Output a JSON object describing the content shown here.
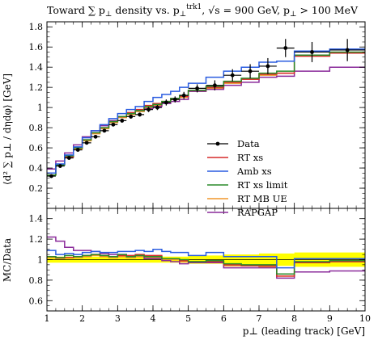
{
  "chart_data": {
    "type": "line",
    "title": "Toward ∑ p⊥ density vs. p⊥trk1, √s = 900 GeV, p⊥ > 100 MeV",
    "title_parts": {
      "main": "Toward ∑ p",
      "sub1": "⊥",
      "mid": " density vs. p",
      "sub2": "⊥",
      "sup2": "trk1",
      "tail": ", √s = 900 GeV, p",
      "sub3": "⊥",
      "end": " > 100 MeV"
    },
    "xlabel": "p⊥ (leading track) [GeV]",
    "ylabel": "⟨d² ∑ p⊥ / dηdφ⟩ [GeV]",
    "ratio_ylabel": "MC/Data",
    "xlim": [
      1,
      10
    ],
    "ylim": [
      0,
      1.85
    ],
    "ratio_ylim": [
      0.5,
      1.5
    ],
    "x_ticks": [
      "1",
      "2",
      "3",
      "4",
      "5",
      "6",
      "7",
      "8",
      "9",
      "10"
    ],
    "y_ticks": [
      "0.2",
      "0.4",
      "0.6",
      "0.8",
      "1",
      "1.2",
      "1.4",
      "1.6",
      "1.8"
    ],
    "ratio_y_ticks": [
      "0.6",
      "0.8",
      "1",
      "1.2",
      "1.4"
    ],
    "legend_position": "center-right",
    "bin_edges": [
      1,
      1.25,
      1.5,
      1.75,
      2,
      2.25,
      2.5,
      2.75,
      3,
      3.25,
      3.5,
      3.75,
      4,
      4.25,
      4.5,
      4.75,
      5,
      5.5,
      6,
      6.5,
      7,
      7.5,
      8,
      9,
      10
    ],
    "data": {
      "name": "Data",
      "x": [
        1.125,
        1.375,
        1.625,
        1.875,
        2.125,
        2.375,
        2.625,
        2.875,
        3.125,
        3.375,
        3.625,
        3.875,
        4.125,
        4.375,
        4.625,
        4.875,
        5.25,
        5.75,
        6.25,
        6.75,
        7.25,
        7.75,
        8.5,
        9.5
      ],
      "y": [
        0.32,
        0.42,
        0.5,
        0.58,
        0.65,
        0.71,
        0.77,
        0.83,
        0.87,
        0.91,
        0.93,
        0.98,
        1.0,
        1.05,
        1.08,
        1.12,
        1.19,
        1.22,
        1.32,
        1.36,
        1.41,
        1.59,
        1.55,
        1.57
      ],
      "err": [
        0.01,
        0.01,
        0.01,
        0.01,
        0.01,
        0.01,
        0.015,
        0.015,
        0.02,
        0.02,
        0.02,
        0.025,
        0.025,
        0.03,
        0.03,
        0.035,
        0.04,
        0.05,
        0.06,
        0.07,
        0.08,
        0.09,
        0.1,
        0.11
      ]
    },
    "series": [
      {
        "name": "RT xs",
        "color": "#d62a2a",
        "values": [
          0.33,
          0.43,
          0.51,
          0.6,
          0.68,
          0.75,
          0.8,
          0.86,
          0.91,
          0.95,
          0.98,
          1.02,
          1.04,
          1.06,
          1.09,
          1.11,
          1.17,
          1.2,
          1.25,
          1.28,
          1.33,
          1.34,
          1.51,
          1.54
        ]
      },
      {
        "name": "Amb xs",
        "color": "#2a5ce0",
        "values": [
          0.35,
          0.44,
          0.53,
          0.61,
          0.7,
          0.77,
          0.83,
          0.89,
          0.94,
          0.98,
          1.01,
          1.06,
          1.1,
          1.13,
          1.16,
          1.2,
          1.24,
          1.3,
          1.36,
          1.4,
          1.45,
          1.46,
          1.56,
          1.58
        ]
      },
      {
        "name": "RT xs limit",
        "color": "#2a8a2a",
        "values": [
          0.33,
          0.43,
          0.52,
          0.6,
          0.68,
          0.75,
          0.8,
          0.86,
          0.91,
          0.94,
          0.97,
          1.01,
          1.03,
          1.06,
          1.09,
          1.12,
          1.17,
          1.21,
          1.26,
          1.29,
          1.34,
          1.36,
          1.52,
          1.55
        ]
      },
      {
        "name": "RT MB UE",
        "color": "#f0962a",
        "values": [
          0.33,
          0.43,
          0.51,
          0.59,
          0.67,
          0.74,
          0.79,
          0.85,
          0.9,
          0.93,
          0.96,
          1.0,
          1.02,
          1.05,
          1.08,
          1.1,
          1.16,
          1.19,
          1.24,
          1.28,
          1.32,
          1.34,
          1.51,
          1.54
        ]
      },
      {
        "name": "RAPGAP",
        "color": "#8a2a9a",
        "values": [
          0.39,
          0.47,
          0.55,
          0.63,
          0.71,
          0.77,
          0.82,
          0.87,
          0.91,
          0.94,
          0.97,
          0.99,
          1.01,
          1.04,
          1.06,
          1.08,
          1.16,
          1.18,
          1.22,
          1.25,
          1.3,
          1.31,
          1.36,
          1.4
        ]
      }
    ],
    "ratio": {
      "band_lower": [
        0.97,
        0.97,
        0.97,
        0.97,
        0.97,
        0.97,
        0.97,
        0.97,
        0.97,
        0.97,
        0.97,
        0.97,
        0.97,
        0.97,
        0.97,
        0.97,
        0.96,
        0.96,
        0.95,
        0.95,
        0.94,
        0.94,
        0.93,
        0.93
      ],
      "band_upper": [
        1.03,
        1.03,
        1.03,
        1.03,
        1.03,
        1.03,
        1.03,
        1.03,
        1.03,
        1.03,
        1.03,
        1.03,
        1.03,
        1.03,
        1.03,
        1.03,
        1.04,
        1.04,
        1.05,
        1.05,
        1.06,
        1.06,
        1.07,
        1.07
      ],
      "series": [
        {
          "name": "RT xs",
          "values": [
            1.03,
            1.02,
            1.02,
            1.03,
            1.04,
            1.05,
            1.04,
            1.03,
            1.04,
            1.04,
            1.05,
            1.04,
            1.04,
            1.01,
            1.01,
            0.99,
            0.98,
            0.98,
            0.95,
            0.94,
            0.94,
            0.84,
            0.97,
            0.98
          ]
        },
        {
          "name": "Amb xs",
          "values": [
            1.09,
            1.05,
            1.06,
            1.05,
            1.07,
            1.08,
            1.07,
            1.07,
            1.08,
            1.08,
            1.09,
            1.08,
            1.1,
            1.08,
            1.07,
            1.07,
            1.04,
            1.07,
            1.03,
            1.03,
            1.03,
            0.92,
            1.01,
            1.01
          ]
        },
        {
          "name": "RT xs limit",
          "values": [
            1.03,
            1.02,
            1.04,
            1.03,
            1.04,
            1.05,
            1.04,
            1.03,
            1.05,
            1.03,
            1.04,
            1.03,
            1.03,
            1.01,
            1.01,
            1.0,
            0.98,
            0.99,
            0.96,
            0.95,
            0.95,
            0.86,
            0.98,
            0.99
          ]
        },
        {
          "name": "RT MB UE",
          "values": [
            1.02,
            1.01,
            1.02,
            1.02,
            1.03,
            1.04,
            1.03,
            1.02,
            1.03,
            1.02,
            1.03,
            1.02,
            1.02,
            1.0,
            1.0,
            0.98,
            0.97,
            0.98,
            0.94,
            0.94,
            0.93,
            0.84,
            0.97,
            0.98
          ]
        },
        {
          "name": "RAPGAP",
          "values": [
            1.22,
            1.18,
            1.12,
            1.09,
            1.09,
            1.08,
            1.06,
            1.05,
            1.05,
            1.03,
            1.04,
            1.01,
            1.01,
            0.99,
            0.98,
            0.96,
            0.97,
            0.97,
            0.92,
            0.92,
            0.92,
            0.82,
            0.88,
            0.89
          ]
        }
      ]
    }
  }
}
